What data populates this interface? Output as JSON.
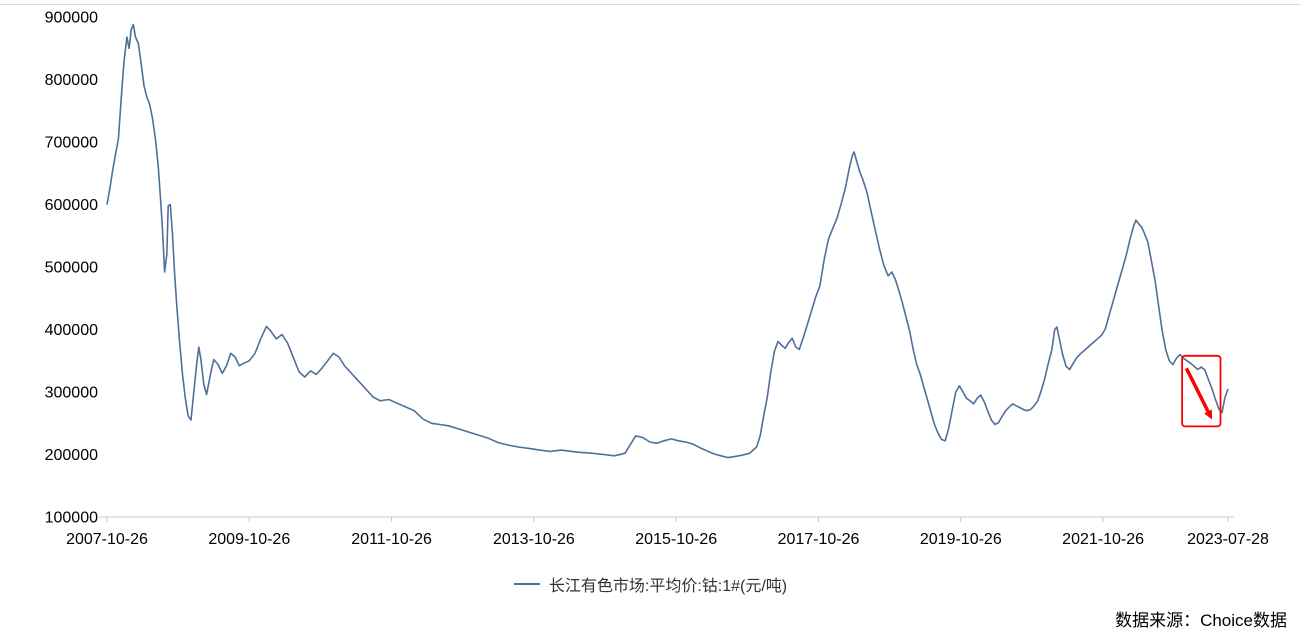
{
  "chart_data": {
    "type": "line",
    "title": "",
    "legend": "长江有色市场:平均价:钴:1#(元/吨)",
    "line_color": "#4e6f9c",
    "axis_color": "#c9c9c9",
    "xlim": [
      2007.82,
      2023.575
    ],
    "ylim": [
      100000,
      900000
    ],
    "grid": false,
    "legend_position": "bottom-center",
    "y_ticks": [
      100000,
      200000,
      300000,
      400000,
      500000,
      600000,
      700000,
      800000,
      900000
    ],
    "x_ticks": [
      {
        "t": 2007.82,
        "label": "2007-10-26"
      },
      {
        "t": 2009.82,
        "label": "2009-10-26"
      },
      {
        "t": 2011.82,
        "label": "2011-10-26"
      },
      {
        "t": 2013.82,
        "label": "2013-10-26"
      },
      {
        "t": 2015.82,
        "label": "2015-10-26"
      },
      {
        "t": 2017.82,
        "label": "2017-10-26"
      },
      {
        "t": 2019.82,
        "label": "2019-10-26"
      },
      {
        "t": 2021.82,
        "label": "2021-10-26"
      },
      {
        "t": 2023.575,
        "label": "2023-07-28"
      }
    ],
    "series": [
      {
        "name": "长江有色市场:平均价:钴:1#(元/吨)",
        "points": [
          [
            2007.82,
            600000
          ],
          [
            2007.86,
            625000
          ],
          [
            2007.9,
            655000
          ],
          [
            2007.94,
            680000
          ],
          [
            2007.98,
            705000
          ],
          [
            2008.02,
            770000
          ],
          [
            2008.06,
            830000
          ],
          [
            2008.1,
            868000
          ],
          [
            2008.13,
            850000
          ],
          [
            2008.16,
            880000
          ],
          [
            2008.19,
            888000
          ],
          [
            2008.22,
            868000
          ],
          [
            2008.26,
            858000
          ],
          [
            2008.3,
            825000
          ],
          [
            2008.34,
            790000
          ],
          [
            2008.38,
            772000
          ],
          [
            2008.42,
            760000
          ],
          [
            2008.46,
            738000
          ],
          [
            2008.5,
            705000
          ],
          [
            2008.54,
            662000
          ],
          [
            2008.57,
            612000
          ],
          [
            2008.6,
            560000
          ],
          [
            2008.63,
            492000
          ],
          [
            2008.66,
            520000
          ],
          [
            2008.68,
            598000
          ],
          [
            2008.71,
            600000
          ],
          [
            2008.74,
            552000
          ],
          [
            2008.77,
            490000
          ],
          [
            2008.8,
            440000
          ],
          [
            2008.84,
            380000
          ],
          [
            2008.88,
            330000
          ],
          [
            2008.92,
            290000
          ],
          [
            2008.96,
            262000
          ],
          [
            2009.0,
            255000
          ],
          [
            2009.04,
            300000
          ],
          [
            2009.08,
            345000
          ],
          [
            2009.11,
            372000
          ],
          [
            2009.14,
            352000
          ],
          [
            2009.18,
            312000
          ],
          [
            2009.22,
            296000
          ],
          [
            2009.27,
            326000
          ],
          [
            2009.32,
            352000
          ],
          [
            2009.38,
            344000
          ],
          [
            2009.44,
            330000
          ],
          [
            2009.5,
            342000
          ],
          [
            2009.56,
            362000
          ],
          [
            2009.62,
            356000
          ],
          [
            2009.68,
            342000
          ],
          [
            2009.74,
            346000
          ],
          [
            2009.82,
            350000
          ],
          [
            2009.9,
            362000
          ],
          [
            2009.98,
            385000
          ],
          [
            2010.06,
            405000
          ],
          [
            2010.12,
            398000
          ],
          [
            2010.2,
            385000
          ],
          [
            2010.28,
            392000
          ],
          [
            2010.36,
            378000
          ],
          [
            2010.44,
            355000
          ],
          [
            2010.52,
            332000
          ],
          [
            2010.6,
            324000
          ],
          [
            2010.68,
            334000
          ],
          [
            2010.76,
            328000
          ],
          [
            2010.84,
            338000
          ],
          [
            2010.92,
            350000
          ],
          [
            2011.0,
            362000
          ],
          [
            2011.08,
            356000
          ],
          [
            2011.16,
            342000
          ],
          [
            2011.24,
            332000
          ],
          [
            2011.32,
            322000
          ],
          [
            2011.4,
            312000
          ],
          [
            2011.48,
            302000
          ],
          [
            2011.56,
            292000
          ],
          [
            2011.66,
            286000
          ],
          [
            2011.78,
            288000
          ],
          [
            2011.9,
            282000
          ],
          [
            2012.02,
            276000
          ],
          [
            2012.14,
            270000
          ],
          [
            2012.26,
            257000
          ],
          [
            2012.38,
            250000
          ],
          [
            2012.5,
            248000
          ],
          [
            2012.62,
            246000
          ],
          [
            2012.76,
            241000
          ],
          [
            2012.9,
            236000
          ],
          [
            2013.04,
            231000
          ],
          [
            2013.18,
            226000
          ],
          [
            2013.32,
            219000
          ],
          [
            2013.46,
            215000
          ],
          [
            2013.6,
            212000
          ],
          [
            2013.74,
            210000
          ],
          [
            2013.9,
            207000
          ],
          [
            2014.05,
            205000
          ],
          [
            2014.2,
            207000
          ],
          [
            2014.35,
            205000
          ],
          [
            2014.5,
            203000
          ],
          [
            2014.65,
            202000
          ],
          [
            2014.8,
            200000
          ],
          [
            2014.95,
            198000
          ],
          [
            2015.1,
            202000
          ],
          [
            2015.25,
            230000
          ],
          [
            2015.35,
            227000
          ],
          [
            2015.45,
            220000
          ],
          [
            2015.55,
            218000
          ],
          [
            2015.65,
            222000
          ],
          [
            2015.75,
            225000
          ],
          [
            2015.85,
            222000
          ],
          [
            2015.95,
            220000
          ],
          [
            2016.05,
            217000
          ],
          [
            2016.15,
            211000
          ],
          [
            2016.25,
            206000
          ],
          [
            2016.35,
            201000
          ],
          [
            2016.45,
            198000
          ],
          [
            2016.55,
            195000
          ],
          [
            2016.65,
            197000
          ],
          [
            2016.75,
            199000
          ],
          [
            2016.85,
            202000
          ],
          [
            2016.95,
            212000
          ],
          [
            2017.0,
            230000
          ],
          [
            2017.05,
            262000
          ],
          [
            2017.1,
            292000
          ],
          [
            2017.15,
            332000
          ],
          [
            2017.2,
            365000
          ],
          [
            2017.25,
            381000
          ],
          [
            2017.3,
            375000
          ],
          [
            2017.35,
            370000
          ],
          [
            2017.4,
            379000
          ],
          [
            2017.45,
            386000
          ],
          [
            2017.5,
            372000
          ],
          [
            2017.55,
            368000
          ],
          [
            2017.62,
            392000
          ],
          [
            2017.7,
            422000
          ],
          [
            2017.78,
            452000
          ],
          [
            2017.84,
            470000
          ],
          [
            2017.9,
            512000
          ],
          [
            2017.96,
            545000
          ],
          [
            2018.02,
            562000
          ],
          [
            2018.08,
            578000
          ],
          [
            2018.14,
            602000
          ],
          [
            2018.2,
            628000
          ],
          [
            2018.26,
            662000
          ],
          [
            2018.3,
            680000
          ],
          [
            2018.32,
            684000
          ],
          [
            2018.36,
            668000
          ],
          [
            2018.4,
            652000
          ],
          [
            2018.44,
            641000
          ],
          [
            2018.5,
            620000
          ],
          [
            2018.56,
            588000
          ],
          [
            2018.62,
            558000
          ],
          [
            2018.68,
            528000
          ],
          [
            2018.74,
            502000
          ],
          [
            2018.8,
            486000
          ],
          [
            2018.85,
            492000
          ],
          [
            2018.9,
            480000
          ],
          [
            2018.95,
            462000
          ],
          [
            2019.0,
            442000
          ],
          [
            2019.05,
            420000
          ],
          [
            2019.1,
            398000
          ],
          [
            2019.15,
            368000
          ],
          [
            2019.2,
            344000
          ],
          [
            2019.25,
            328000
          ],
          [
            2019.3,
            308000
          ],
          [
            2019.35,
            288000
          ],
          [
            2019.4,
            268000
          ],
          [
            2019.45,
            248000
          ],
          [
            2019.5,
            234000
          ],
          [
            2019.55,
            224000
          ],
          [
            2019.6,
            222000
          ],
          [
            2019.65,
            242000
          ],
          [
            2019.7,
            272000
          ],
          [
            2019.75,
            300000
          ],
          [
            2019.8,
            310000
          ],
          [
            2019.85,
            300000
          ],
          [
            2019.9,
            290000
          ],
          [
            2019.95,
            286000
          ],
          [
            2020.0,
            281000
          ],
          [
            2020.05,
            290000
          ],
          [
            2020.1,
            295000
          ],
          [
            2020.15,
            284000
          ],
          [
            2020.2,
            269000
          ],
          [
            2020.25,
            255000
          ],
          [
            2020.3,
            248000
          ],
          [
            2020.35,
            251000
          ],
          [
            2020.4,
            261000
          ],
          [
            2020.45,
            270000
          ],
          [
            2020.5,
            276000
          ],
          [
            2020.55,
            281000
          ],
          [
            2020.6,
            278000
          ],
          [
            2020.65,
            275000
          ],
          [
            2020.7,
            272000
          ],
          [
            2020.75,
            270000
          ],
          [
            2020.8,
            272000
          ],
          [
            2020.85,
            278000
          ],
          [
            2020.9,
            286000
          ],
          [
            2020.95,
            302000
          ],
          [
            2021.0,
            322000
          ],
          [
            2021.05,
            346000
          ],
          [
            2021.1,
            368000
          ],
          [
            2021.14,
            400000
          ],
          [
            2021.17,
            404000
          ],
          [
            2021.2,
            388000
          ],
          [
            2021.25,
            360000
          ],
          [
            2021.3,
            341000
          ],
          [
            2021.35,
            336000
          ],
          [
            2021.4,
            346000
          ],
          [
            2021.45,
            355000
          ],
          [
            2021.5,
            361000
          ],
          [
            2021.55,
            366000
          ],
          [
            2021.6,
            371000
          ],
          [
            2021.65,
            376000
          ],
          [
            2021.7,
            381000
          ],
          [
            2021.75,
            386000
          ],
          [
            2021.8,
            391000
          ],
          [
            2021.85,
            401000
          ],
          [
            2021.9,
            421000
          ],
          [
            2021.95,
            441000
          ],
          [
            2022.0,
            461000
          ],
          [
            2022.05,
            481000
          ],
          [
            2022.1,
            501000
          ],
          [
            2022.15,
            521000
          ],
          [
            2022.2,
            546000
          ],
          [
            2022.25,
            566000
          ],
          [
            2022.28,
            575000
          ],
          [
            2022.32,
            569000
          ],
          [
            2022.36,
            564000
          ],
          [
            2022.4,
            554000
          ],
          [
            2022.45,
            539000
          ],
          [
            2022.5,
            509000
          ],
          [
            2022.55,
            478000
          ],
          [
            2022.6,
            438000
          ],
          [
            2022.65,
            398000
          ],
          [
            2022.7,
            368000
          ],
          [
            2022.75,
            350000
          ],
          [
            2022.8,
            344000
          ],
          [
            2022.85,
            354000
          ],
          [
            2022.9,
            360000
          ],
          [
            2022.95,
            354000
          ],
          [
            2023.0,
            350000
          ],
          [
            2023.05,
            346000
          ],
          [
            2023.1,
            341000
          ],
          [
            2023.15,
            336000
          ],
          [
            2023.2,
            340000
          ],
          [
            2023.25,
            335000
          ],
          [
            2023.3,
            320000
          ],
          [
            2023.35,
            305000
          ],
          [
            2023.4,
            288000
          ],
          [
            2023.45,
            272000
          ],
          [
            2023.49,
            267000
          ],
          [
            2023.53,
            290000
          ],
          [
            2023.575,
            305000
          ]
        ]
      }
    ],
    "annotation": {
      "type": "rect-with-arrow",
      "color": "#ff0000",
      "box_t": [
        2022.93,
        2023.47
      ],
      "box_v": [
        245000,
        358000
      ],
      "arrow": [
        [
          2022.99,
          338000
        ],
        [
          2023.35,
          256000
        ]
      ]
    }
  },
  "footer": {
    "source": "数据来源：Choice数据"
  }
}
